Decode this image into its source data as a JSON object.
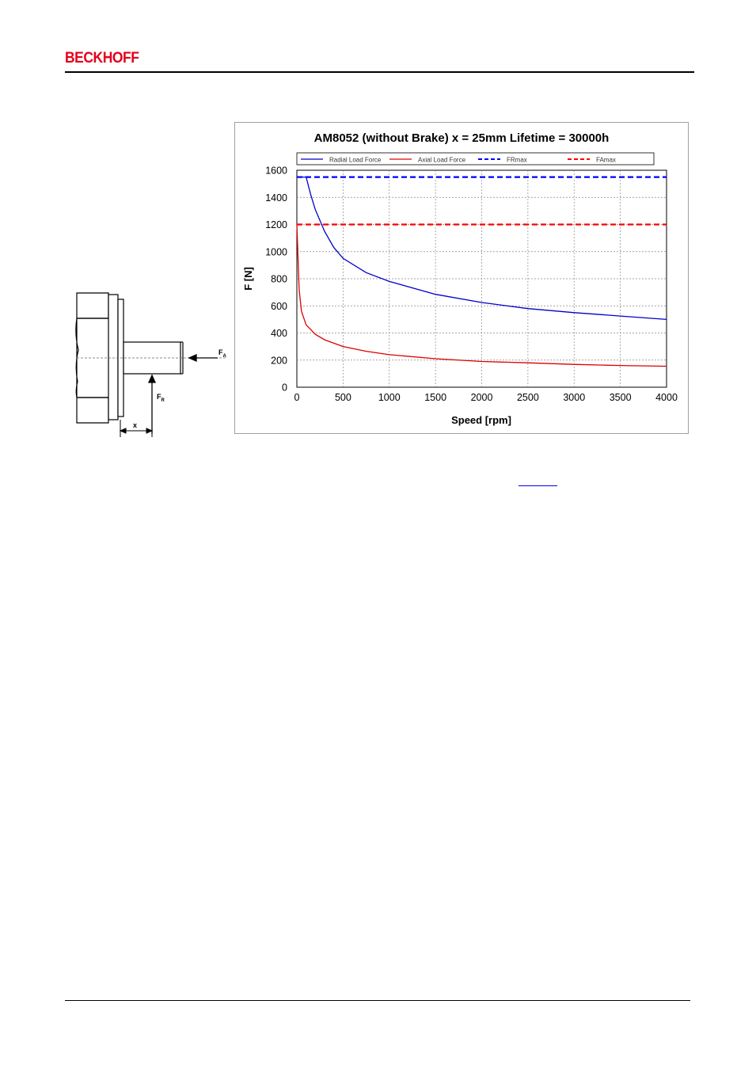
{
  "header": {
    "brand": "BECKHOFF",
    "brand_color": "#e2001a"
  },
  "diagram": {
    "label_fa": "F",
    "label_fa_sub": "A",
    "label_fr": "F",
    "label_fr_sub": "R",
    "label_x": "x"
  },
  "chart_data": {
    "type": "line",
    "title": "AM8052 (without Brake) x = 25mm Lifetime = 30000h",
    "xlabel": "Speed [rpm]",
    "ylabel": "F [N]",
    "xlim": [
      0,
      4000
    ],
    "ylim": [
      0,
      1600
    ],
    "x_ticks": [
      0,
      500,
      1000,
      1500,
      2000,
      2500,
      3000,
      3500,
      4000
    ],
    "y_ticks": [
      0,
      200,
      400,
      600,
      800,
      1000,
      1200,
      1400,
      1600
    ],
    "grid": true,
    "legend_position": "top",
    "series": [
      {
        "name": "Radial Load Force",
        "color": "#0000cc",
        "style": "solid",
        "x": [
          0,
          100,
          150,
          200,
          300,
          400,
          500,
          750,
          1000,
          1500,
          2000,
          2500,
          3000,
          3500,
          4000
        ],
        "y": [
          1550,
          1550,
          1420,
          1310,
          1150,
          1030,
          950,
          845,
          780,
          685,
          625,
          580,
          550,
          525,
          500
        ]
      },
      {
        "name": "Axial Load Force",
        "color": "#dd0000",
        "style": "solid",
        "x": [
          0,
          10,
          25,
          50,
          100,
          200,
          300,
          500,
          750,
          1000,
          1500,
          2000,
          2500,
          3000,
          3500,
          4000
        ],
        "y": [
          1200,
          1000,
          720,
          560,
          460,
          390,
          350,
          300,
          265,
          240,
          210,
          190,
          180,
          168,
          160,
          155
        ]
      },
      {
        "name": "FRmax",
        "color": "#0000ff",
        "style": "dashed",
        "x": [
          0,
          4000
        ],
        "y": [
          1550,
          1550
        ]
      },
      {
        "name": "FAmax",
        "color": "#ff0000",
        "style": "dashed",
        "x": [
          0,
          4000
        ],
        "y": [
          1200,
          1200
        ]
      }
    ]
  }
}
